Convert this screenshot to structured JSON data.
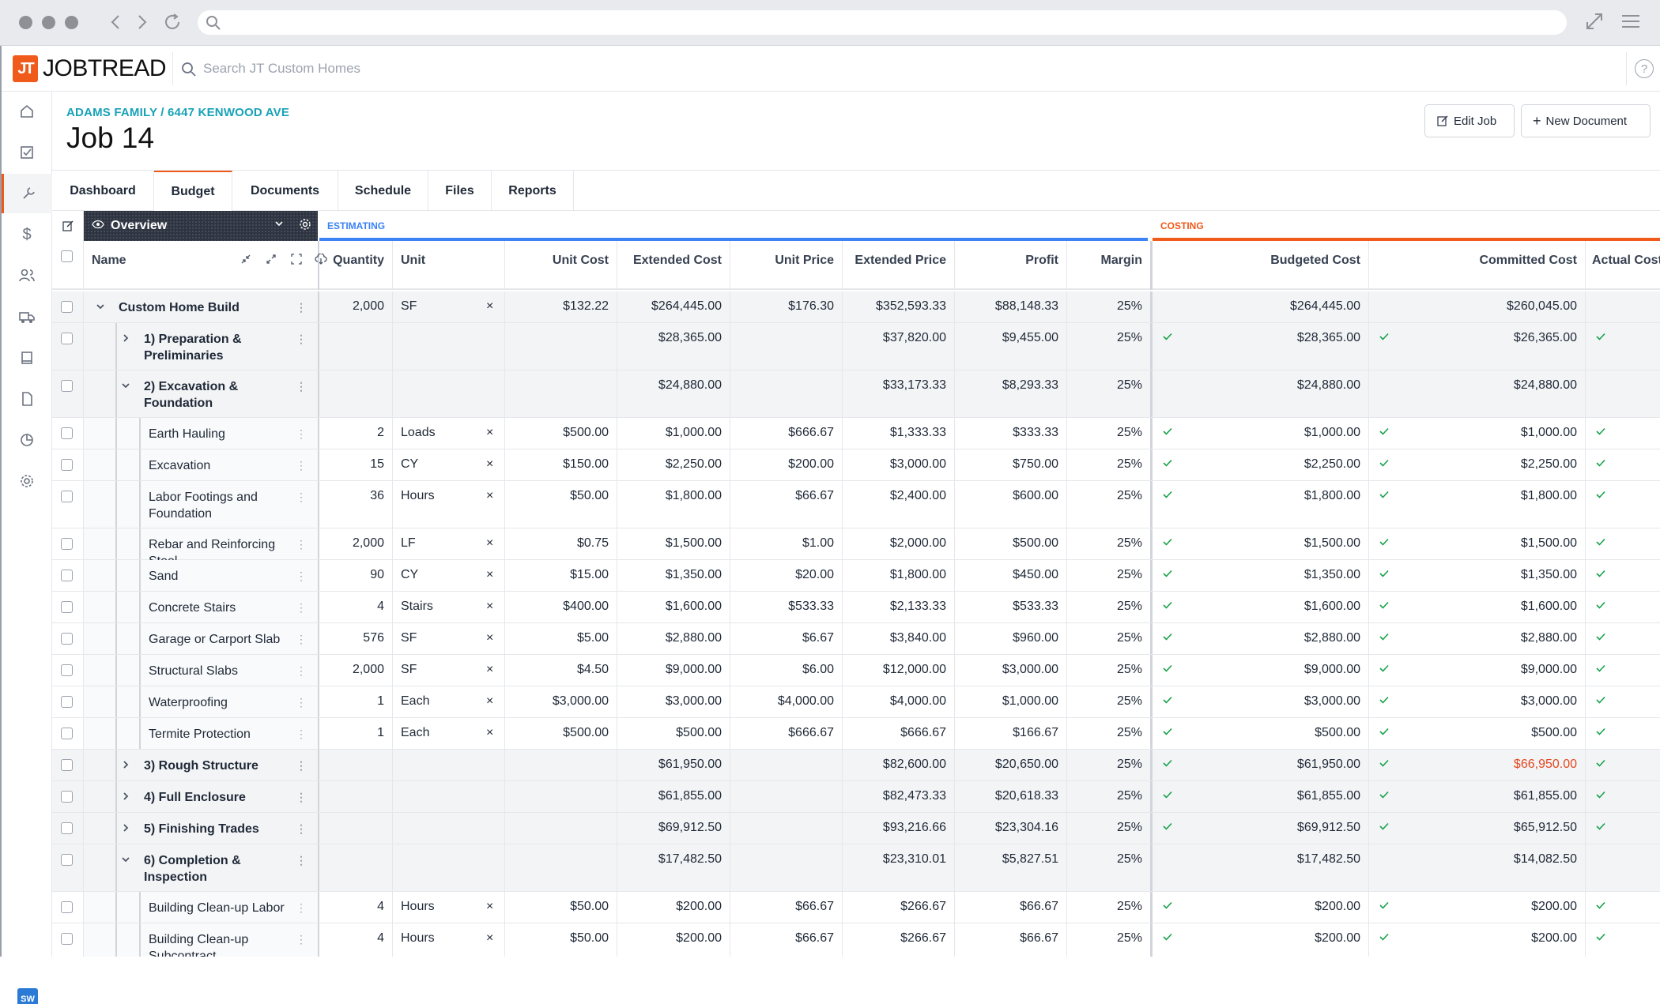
{
  "browser": {
    "url": ""
  },
  "app": {
    "logo": "JOBTREAD",
    "logo_a": "JOB",
    "logo_b": "TREAD",
    "search_placeholder": "Search JT Custom Homes"
  },
  "page": {
    "breadcrumb": "ADAMS FAMILY / 6447 KENWOOD AVE",
    "title": "Job 14",
    "edit_label": "Edit Job",
    "new_doc_label": "New Document"
  },
  "tabs": [
    "Dashboard",
    "Budget",
    "Documents",
    "Schedule",
    "Files",
    "Reports"
  ],
  "active_tab": "Budget",
  "view": {
    "name": "Overview",
    "estimating_label": "ESTIMATING",
    "costing_label": "COSTING"
  },
  "columns": {
    "name": "Name",
    "quantity": "Quantity",
    "unit": "Unit",
    "unit_cost": "Unit Cost",
    "extended_cost": "Extended Cost",
    "unit_price": "Unit Price",
    "extended_price": "Extended Price",
    "profit": "Profit",
    "margin": "Margin",
    "budgeted_cost": "Budgeted Cost",
    "committed_cost": "Committed Cost",
    "actual_cost": "Actual Cost"
  },
  "rows": [
    {
      "name": "Custom Home Build",
      "kind": "root",
      "qty": "2,000",
      "unit": "SF",
      "unit_cost": "$132.22",
      "ext_cost": "$264,445.00",
      "unit_price": "$176.30",
      "ext_price": "$352,593.33",
      "profit": "$88,148.33",
      "margin": "25%",
      "budgeted": "$264,445.00",
      "committed": "$260,045.00",
      "checks": false
    },
    {
      "name": "1) Preparation & Preliminaries",
      "kind": "group-closed",
      "qty": "",
      "unit": "",
      "unit_cost": "",
      "ext_cost": "$28,365.00",
      "unit_price": "",
      "ext_price": "$37,820.00",
      "profit": "$9,455.00",
      "margin": "25%",
      "budgeted": "$28,365.00",
      "committed": "$26,365.00",
      "checks": true
    },
    {
      "name": "2) Excavation & Foundation",
      "kind": "group-open",
      "qty": "",
      "unit": "",
      "unit_cost": "",
      "ext_cost": "$24,880.00",
      "unit_price": "",
      "ext_price": "$33,173.33",
      "profit": "$8,293.33",
      "margin": "25%",
      "budgeted": "$24,880.00",
      "committed": "$24,880.00",
      "checks": false
    },
    {
      "name": "Earth Hauling",
      "kind": "leaf",
      "qty": "2",
      "unit": "Loads",
      "unit_cost": "$500.00",
      "ext_cost": "$1,000.00",
      "unit_price": "$666.67",
      "ext_price": "$1,333.33",
      "profit": "$333.33",
      "margin": "25%",
      "budgeted": "$1,000.00",
      "committed": "$1,000.00",
      "checks": true
    },
    {
      "name": "Excavation",
      "kind": "leaf",
      "qty": "15",
      "unit": "CY",
      "unit_cost": "$150.00",
      "ext_cost": "$2,250.00",
      "unit_price": "$200.00",
      "ext_price": "$3,000.00",
      "profit": "$750.00",
      "margin": "25%",
      "budgeted": "$2,250.00",
      "committed": "$2,250.00",
      "checks": true
    },
    {
      "name": "Labor Footings and Foundation",
      "kind": "leaf",
      "qty": "36",
      "unit": "Hours",
      "unit_cost": "$50.00",
      "ext_cost": "$1,800.00",
      "unit_price": "$66.67",
      "ext_price": "$2,400.00",
      "profit": "$600.00",
      "margin": "25%",
      "budgeted": "$1,800.00",
      "committed": "$1,800.00",
      "checks": true
    },
    {
      "name": "Rebar and Reinforcing Steel",
      "kind": "leaf",
      "qty": "2,000",
      "unit": "LF",
      "unit_cost": "$0.75",
      "ext_cost": "$1,500.00",
      "unit_price": "$1.00",
      "ext_price": "$2,000.00",
      "profit": "$500.00",
      "margin": "25%",
      "budgeted": "$1,500.00",
      "committed": "$1,500.00",
      "checks": true
    },
    {
      "name": "Sand",
      "kind": "leaf",
      "qty": "90",
      "unit": "CY",
      "unit_cost": "$15.00",
      "ext_cost": "$1,350.00",
      "unit_price": "$20.00",
      "ext_price": "$1,800.00",
      "profit": "$450.00",
      "margin": "25%",
      "budgeted": "$1,350.00",
      "committed": "$1,350.00",
      "checks": true
    },
    {
      "name": "Concrete Stairs",
      "kind": "leaf",
      "qty": "4",
      "unit": "Stairs",
      "unit_cost": "$400.00",
      "ext_cost": "$1,600.00",
      "unit_price": "$533.33",
      "ext_price": "$2,133.33",
      "profit": "$533.33",
      "margin": "25%",
      "budgeted": "$1,600.00",
      "committed": "$1,600.00",
      "checks": true
    },
    {
      "name": "Garage or Carport Slab",
      "kind": "leaf",
      "qty": "576",
      "unit": "SF",
      "unit_cost": "$5.00",
      "ext_cost": "$2,880.00",
      "unit_price": "$6.67",
      "ext_price": "$3,840.00",
      "profit": "$960.00",
      "margin": "25%",
      "budgeted": "$2,880.00",
      "committed": "$2,880.00",
      "checks": true
    },
    {
      "name": "Structural Slabs",
      "kind": "leaf",
      "qty": "2,000",
      "unit": "SF",
      "unit_cost": "$4.50",
      "ext_cost": "$9,000.00",
      "unit_price": "$6.00",
      "ext_price": "$12,000.00",
      "profit": "$3,000.00",
      "margin": "25%",
      "budgeted": "$9,000.00",
      "committed": "$9,000.00",
      "checks": true
    },
    {
      "name": "Waterproofing",
      "kind": "leaf",
      "qty": "1",
      "unit": "Each",
      "unit_cost": "$3,000.00",
      "ext_cost": "$3,000.00",
      "unit_price": "$4,000.00",
      "ext_price": "$4,000.00",
      "profit": "$1,000.00",
      "margin": "25%",
      "budgeted": "$3,000.00",
      "committed": "$3,000.00",
      "checks": true
    },
    {
      "name": "Termite Protection",
      "kind": "leaf",
      "qty": "1",
      "unit": "Each",
      "unit_cost": "$500.00",
      "ext_cost": "$500.00",
      "unit_price": "$666.67",
      "ext_price": "$666.67",
      "profit": "$166.67",
      "margin": "25%",
      "budgeted": "$500.00",
      "committed": "$500.00",
      "checks": true
    },
    {
      "name": "3) Rough Structure",
      "kind": "group-closed",
      "qty": "",
      "unit": "",
      "unit_cost": "",
      "ext_cost": "$61,950.00",
      "unit_price": "",
      "ext_price": "$82,600.00",
      "profit": "$20,650.00",
      "margin": "25%",
      "budgeted": "$61,950.00",
      "committed": "$66,950.00",
      "committed_over": true,
      "checks": true
    },
    {
      "name": "4) Full Enclosure",
      "kind": "group-closed",
      "qty": "",
      "unit": "",
      "unit_cost": "",
      "ext_cost": "$61,855.00",
      "unit_price": "",
      "ext_price": "$82,473.33",
      "profit": "$20,618.33",
      "margin": "25%",
      "budgeted": "$61,855.00",
      "committed": "$61,855.00",
      "checks": true
    },
    {
      "name": "5) Finishing Trades",
      "kind": "group-closed",
      "qty": "",
      "unit": "",
      "unit_cost": "",
      "ext_cost": "$69,912.50",
      "unit_price": "",
      "ext_price": "$93,216.66",
      "profit": "$23,304.16",
      "margin": "25%",
      "budgeted": "$69,912.50",
      "committed": "$65,912.50",
      "checks": true
    },
    {
      "name": "6) Completion & Inspection",
      "kind": "group-open",
      "qty": "",
      "unit": "",
      "unit_cost": "",
      "ext_cost": "$17,482.50",
      "unit_price": "",
      "ext_price": "$23,310.01",
      "profit": "$5,827.51",
      "margin": "25%",
      "budgeted": "$17,482.50",
      "committed": "$14,082.50",
      "checks": false
    },
    {
      "name": "Building Clean-up Labor",
      "kind": "leaf",
      "qty": "4",
      "unit": "Hours",
      "unit_cost": "$50.00",
      "ext_cost": "$200.00",
      "unit_price": "$66.67",
      "ext_price": "$266.67",
      "profit": "$66.67",
      "margin": "25%",
      "budgeted": "$200.00",
      "committed": "$200.00",
      "checks": true
    },
    {
      "name": "Building Clean-up Subcontract",
      "kind": "leaf",
      "qty": "4",
      "unit": "Hours",
      "unit_cost": "$50.00",
      "ext_cost": "$200.00",
      "unit_price": "$66.67",
      "ext_price": "$266.67",
      "profit": "$66.67",
      "margin": "25%",
      "budgeted": "$200.00",
      "committed": "$200.00",
      "checks": true
    }
  ],
  "user": {
    "initials": "SW"
  },
  "colors": {
    "accent": "#f05a1a",
    "estimating": "#3b82f6",
    "breadcrumb": "#17a2b8",
    "check": "#16a34a",
    "over": "#e4471f"
  }
}
